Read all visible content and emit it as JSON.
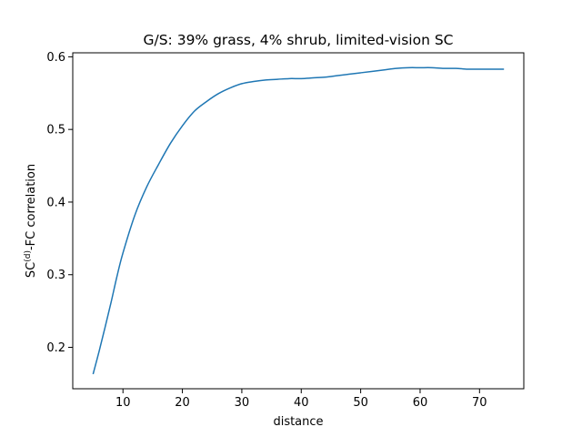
{
  "chart_data": {
    "type": "line",
    "title": "G/S: 39% grass, 4% shrub, limited-vision SC",
    "xlabel": "distance",
    "ylabel": {
      "prefix": "SC",
      "superscript": "(d)",
      "suffix": "-FC correlation"
    },
    "xlim": [
      1.55,
      77.45
    ],
    "ylim": [
      0.143,
      0.6055
    ],
    "xticks": [
      10,
      20,
      30,
      40,
      50,
      60,
      70
    ],
    "yticks": [
      0.2,
      0.3,
      0.4,
      0.5,
      0.6
    ],
    "ytick_labels": [
      "0.2",
      "0.3",
      "0.4",
      "0.5",
      "0.6"
    ],
    "grid": false,
    "line_color": "#1f77b4",
    "series": [
      {
        "x": [
          5,
          6,
          7,
          8,
          9,
          10,
          12,
          14,
          16,
          18,
          20,
          22,
          24,
          26,
          28,
          30,
          32,
          34,
          36,
          38,
          40,
          42,
          44,
          46,
          48,
          50,
          52,
          54,
          56,
          58,
          60,
          62,
          64,
          66,
          68,
          70,
          72,
          74
        ],
        "y": [
          0.164,
          0.195,
          0.228,
          0.262,
          0.298,
          0.33,
          0.382,
          0.421,
          0.452,
          0.481,
          0.505,
          0.525,
          0.538,
          0.549,
          0.557,
          0.563,
          0.566,
          0.568,
          0.569,
          0.57,
          0.57,
          0.571,
          0.572,
          0.574,
          0.576,
          0.578,
          0.58,
          0.582,
          0.584,
          0.585,
          0.585,
          0.585,
          0.584,
          0.584,
          0.583,
          0.583,
          0.583,
          0.583
        ]
      }
    ]
  }
}
